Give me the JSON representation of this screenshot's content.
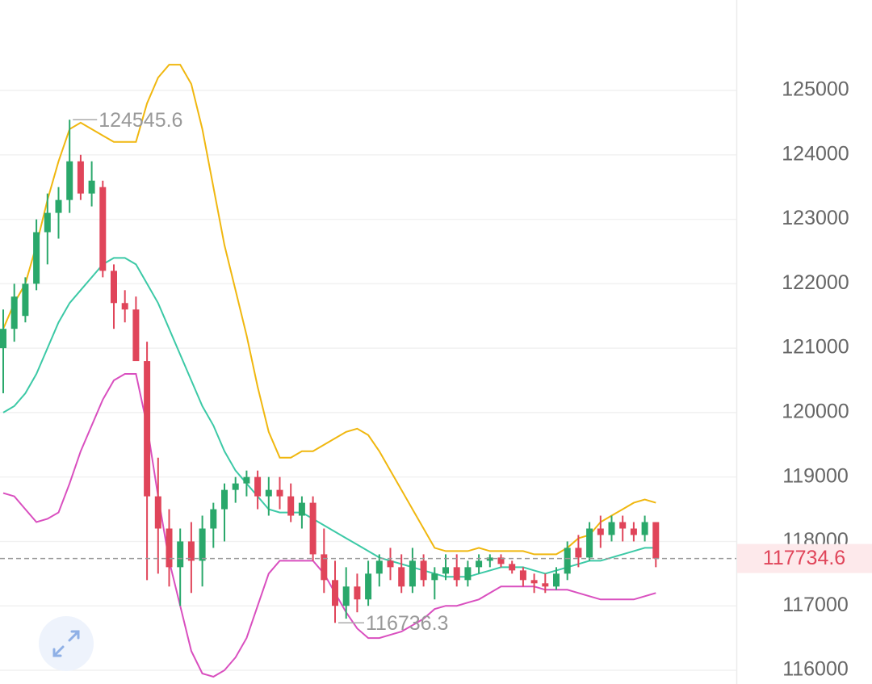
{
  "chart_data": {
    "type": "candlestick",
    "ylim": [
      115787,
      126404
    ],
    "yticks": [
      116000,
      117000,
      118000,
      119000,
      120000,
      121000,
      122000,
      123000,
      124000,
      125000
    ],
    "grid": true,
    "up_color": "#2aa86b",
    "down_color": "#e0455a",
    "open": [
      121000,
      121300,
      121500,
      122000,
      122800,
      123100,
      123300,
      123900,
      123400,
      123500,
      122200,
      121700,
      121600,
      120800,
      118700,
      118200,
      117600,
      118000,
      117700,
      118200,
      118500,
      118800,
      118900,
      119000,
      118700,
      118800,
      118700,
      118400,
      118600,
      117800,
      117400,
      117000,
      117300,
      117100,
      117500,
      117700,
      117600,
      117300,
      117700,
      117400,
      117500,
      117600,
      117400,
      117600,
      117700,
      117750,
      117650,
      117550,
      117400,
      117350,
      117300,
      117500,
      117900,
      117750,
      118200,
      118100,
      118300,
      118200,
      118100,
      118300
    ],
    "high": [
      121600,
      122000,
      122100,
      123000,
      123400,
      123500,
      124545.6,
      124000,
      123900,
      123600,
      122300,
      121900,
      121800,
      121100,
      119300,
      118500,
      118200,
      118300,
      118400,
      118600,
      118900,
      119000,
      119100,
      119100,
      119000,
      119000,
      118900,
      118700,
      118700,
      118200,
      117700,
      117600,
      117500,
      117700,
      117800,
      117900,
      117800,
      117900,
      117800,
      117600,
      117800,
      117800,
      117700,
      117800,
      117800,
      117800,
      117700,
      117600,
      117500,
      117500,
      117600,
      118000,
      118100,
      118300,
      118400,
      118400,
      118400,
      118300,
      118400,
      118300
    ],
    "low": [
      120300,
      121100,
      121400,
      121900,
      122300,
      122700,
      123100,
      123300,
      123200,
      122100,
      121300,
      121400,
      120900,
      117400,
      117500,
      117300,
      117000,
      117200,
      117300,
      117900,
      118000,
      118600,
      118700,
      118500,
      118400,
      118500,
      118300,
      118200,
      117700,
      117200,
      116736.3,
      116800,
      116900,
      117000,
      117300,
      117400,
      117200,
      117200,
      117300,
      117100,
      117400,
      117300,
      117300,
      117500,
      117600,
      117600,
      117500,
      117300,
      117200,
      117200,
      117250,
      117400,
      117600,
      117700,
      117900,
      118000,
      118000,
      118000,
      118000,
      117600
    ],
    "close": [
      121300,
      121800,
      122000,
      122800,
      123100,
      123300,
      123900,
      123400,
      123600,
      122200,
      121700,
      121600,
      120800,
      118700,
      118200,
      117600,
      118000,
      117700,
      118200,
      118500,
      118800,
      118900,
      119000,
      118700,
      118800,
      118700,
      118400,
      118600,
      117800,
      117400,
      117000,
      117300,
      117100,
      117500,
      117700,
      117600,
      117300,
      117700,
      117400,
      117500,
      117600,
      117400,
      117600,
      117700,
      117750,
      117650,
      117550,
      117400,
      117350,
      117300,
      117500,
      117900,
      117750,
      118200,
      118100,
      118300,
      118200,
      118100,
      118300,
      117734.6
    ],
    "bands": [
      {
        "color": "#f0b70f",
        "values": [
          121300,
          121700,
          122000,
          122600,
          123300,
          123900,
          124400,
          124500,
          124400,
          124300,
          124200,
          124200,
          124200,
          124800,
          125200,
          125400,
          125400,
          125100,
          124400,
          123500,
          122600,
          121900,
          121200,
          120400,
          119700,
          119300,
          119300,
          119400,
          119400,
          119500,
          119600,
          119700,
          119750,
          119650,
          119400,
          119100,
          118800,
          118500,
          118200,
          117900,
          117850,
          117850,
          117850,
          117900,
          117850,
          117850,
          117850,
          117850,
          117800,
          117800,
          117800,
          117900,
          118050,
          118100,
          118300,
          118400,
          118500,
          118600,
          118650,
          118600
        ]
      },
      {
        "color": "#3cc9a6",
        "values": [
          120000,
          120100,
          120300,
          120600,
          121000,
          121400,
          121700,
          121900,
          122100,
          122300,
          122400,
          122400,
          122300,
          122000,
          121700,
          121300,
          120900,
          120500,
          120100,
          119800,
          119400,
          119100,
          118900,
          118700,
          118500,
          118450,
          118450,
          118450,
          118350,
          118250,
          118150,
          118050,
          117950,
          117850,
          117750,
          117700,
          117650,
          117600,
          117550,
          117500,
          117450,
          117450,
          117450,
          117500,
          117550,
          117600,
          117600,
          117600,
          117550,
          117500,
          117550,
          117600,
          117650,
          117700,
          117700,
          117750,
          117800,
          117850,
          117900,
          117900
        ]
      },
      {
        "color": "#d94fbf",
        "values": [
          118750,
          118700,
          118500,
          118300,
          118350,
          118450,
          118900,
          119400,
          119800,
          120200,
          120500,
          120600,
          120600,
          119800,
          118700,
          117700,
          117000,
          116300,
          115950,
          115900,
          116000,
          116200,
          116500,
          117000,
          117500,
          117700,
          117700,
          117700,
          117700,
          117500,
          117200,
          116900,
          116650,
          116500,
          116500,
          116550,
          116600,
          116700,
          116800,
          116950,
          117000,
          117000,
          117050,
          117100,
          117200,
          117300,
          117300,
          117300,
          117300,
          117250,
          117250,
          117250,
          117200,
          117150,
          117100,
          117100,
          117100,
          117100,
          117150,
          117200
        ]
      }
    ],
    "high_annotation": 124545.6,
    "low_annotation": 116736.3,
    "last_price": 117734.6,
    "last_price_color": "#e0455a"
  }
}
